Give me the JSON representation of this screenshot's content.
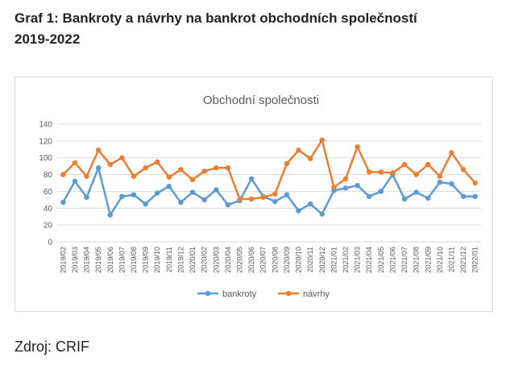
{
  "heading": {
    "line1": "Graf 1: Bankroty a návrhy na bankrot obchodních společností",
    "line2": "2019-2022"
  },
  "source": "Zdroj: CRIF",
  "chart_data": {
    "type": "line",
    "title": "Obchodní společnosti",
    "xlabel": "",
    "ylabel": "",
    "ylim": [
      0,
      140
    ],
    "yticks": [
      0,
      20,
      40,
      60,
      80,
      100,
      120,
      140
    ],
    "grid": true,
    "legend": "bottom",
    "categories": [
      "2019/02",
      "2019/03",
      "2019/04",
      "2019/05",
      "2019/06",
      "2019/07",
      "2019/08",
      "2019/09",
      "2019/10",
      "2019/11",
      "2019/12",
      "2020/01",
      "2020/02",
      "2020/03",
      "2020/04",
      "2020/05",
      "2020/06",
      "2020/07",
      "2020/08",
      "2020/09",
      "2020/10",
      "2020/11",
      "2020/12",
      "2021/01",
      "2021/02",
      "2021/03",
      "2021/04",
      "2021/05",
      "2021/06",
      "2021/07",
      "2021/08",
      "2021/09",
      "2021/10",
      "2021/11",
      "2021/12",
      "2022/01"
    ],
    "series": [
      {
        "name": "bankroty",
        "color": "#5b9bd5",
        "values": [
          47,
          72,
          53,
          88,
          32,
          54,
          56,
          45,
          58,
          66,
          47,
          59,
          50,
          62,
          44,
          49,
          75,
          54,
          48,
          56,
          37,
          45,
          33,
          61,
          64,
          67,
          54,
          60,
          80,
          51,
          59,
          52,
          71,
          69,
          54,
          54
        ]
      },
      {
        "name": "návrhy",
        "color": "#ed7d31",
        "values": [
          80,
          94,
          78,
          109,
          92,
          100,
          78,
          88,
          95,
          77,
          86,
          74,
          84,
          88,
          88,
          51,
          51,
          53,
          57,
          93,
          109,
          99,
          121,
          65,
          75,
          113,
          83,
          83,
          82,
          92,
          80,
          92,
          78,
          106,
          86,
          70
        ]
      }
    ]
  }
}
